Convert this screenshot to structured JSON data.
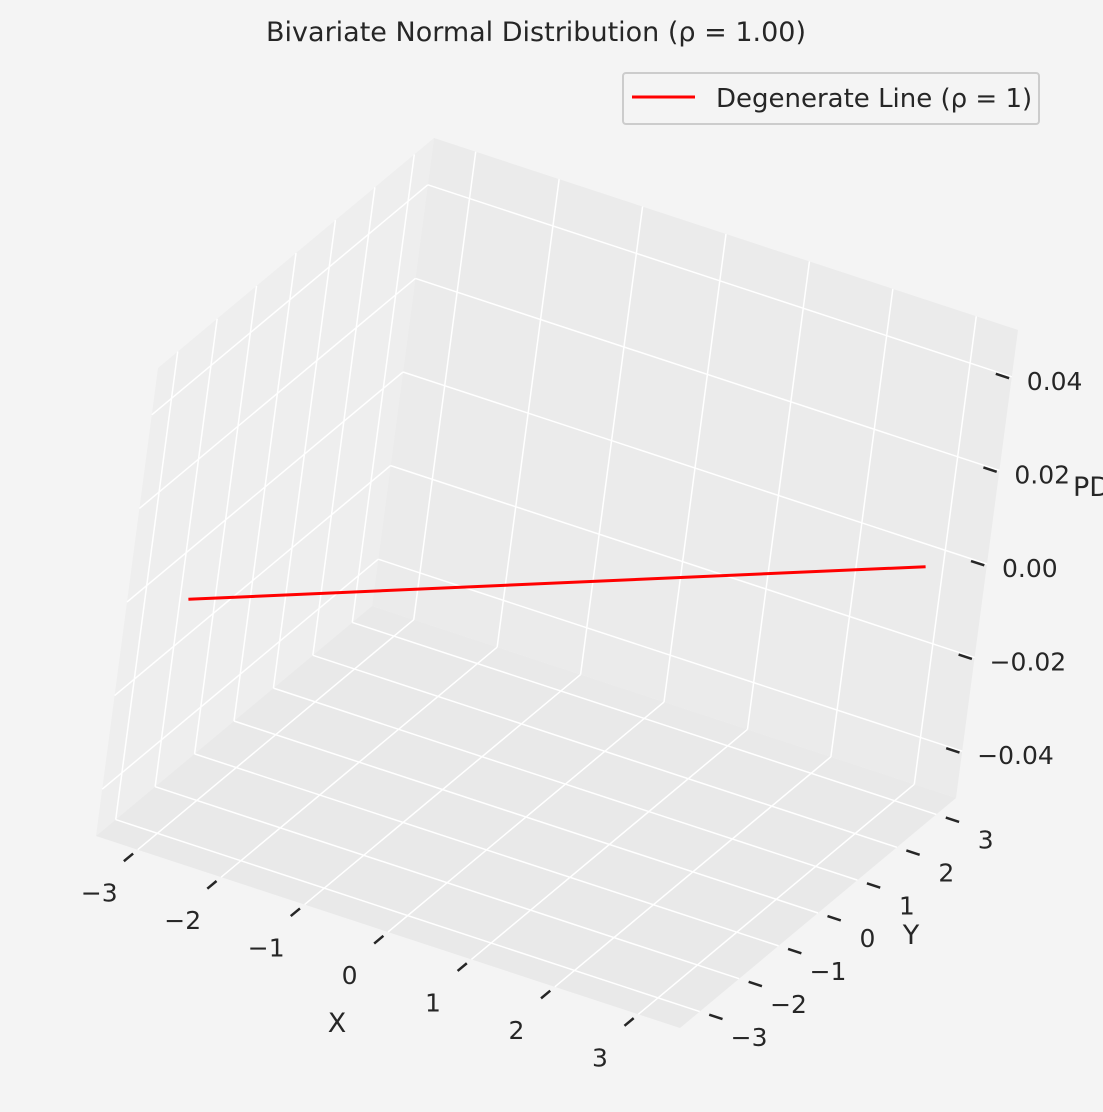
{
  "chart_data": {
    "type": "line",
    "projection": "3d",
    "title": "Bivariate Normal Distribution (ρ = 1.00)",
    "xlabel": "X",
    "ylabel": "Y",
    "zlabel": "PD",
    "xlim": [
      -3.5,
      3.5
    ],
    "ylim": [
      -3.5,
      3.5
    ],
    "zlim": [
      -0.05,
      0.05
    ],
    "x_ticks": [
      -3,
      -2,
      -1,
      0,
      1,
      2,
      3
    ],
    "x_tick_labels": [
      "−3",
      "−2",
      "−1",
      "0",
      "1",
      "2",
      "3"
    ],
    "y_ticks": [
      -3,
      -2,
      -1,
      0,
      1,
      2,
      3
    ],
    "y_tick_labels": [
      "−3",
      "−2",
      "−1",
      "0",
      "1",
      "2",
      "3"
    ],
    "z_ticks": [
      -0.04,
      -0.02,
      0,
      0.02,
      0.04
    ],
    "z_tick_labels": [
      "−0.04",
      "−0.02",
      "0.00",
      "0.02",
      "0.04"
    ],
    "grid": true,
    "legend_position": "top-right",
    "series": [
      {
        "name": "Degenerate Line (ρ = 1)",
        "color": "#ff0000",
        "x": [
          -3,
          3
        ],
        "y": [
          -3,
          3
        ],
        "z": [
          0,
          0
        ]
      }
    ]
  },
  "colors": {
    "background": "#f4f4f4",
    "pane_back": "#ebebeb",
    "pane_side": "#eeeeee",
    "pane_floor": "#e9e9e9",
    "grid": "#ffffff",
    "text": "#262626"
  }
}
